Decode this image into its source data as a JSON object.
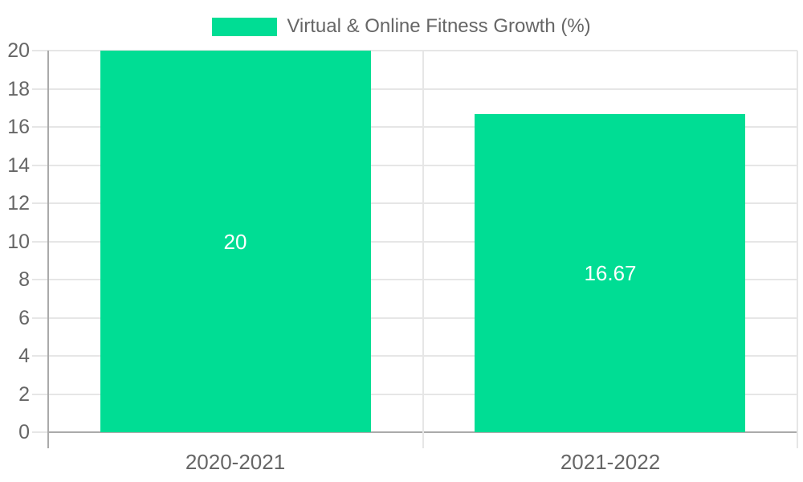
{
  "chart_data": {
    "type": "bar",
    "title": "",
    "categories": [
      "2020-2021",
      "2021-2022"
    ],
    "series": [
      {
        "name": "Virtual & Online Fitness Growth (%)",
        "values": [
          20,
          16.67
        ]
      }
    ],
    "value_labels": [
      "20",
      "16.67"
    ],
    "ytick_labels": [
      "0",
      "2",
      "4",
      "6",
      "8",
      "10",
      "12",
      "14",
      "16",
      "18",
      "20"
    ],
    "ytick_step": 2,
    "ylim": [
      0,
      20
    ],
    "grid": true,
    "legend_position": "top",
    "colors": {
      "bar": "#00dd94",
      "grid": "#e6e6e6",
      "zero_line": "#aaaaaa",
      "axis_text": "#666666",
      "value_label_text": "#ffffff",
      "background": "#ffffff"
    }
  }
}
